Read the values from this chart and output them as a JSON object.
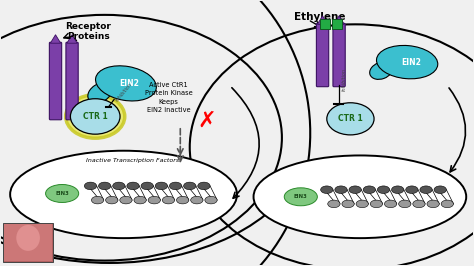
{
  "bg_color": "#f0f0f0",
  "left_label": "Receptor\nProteins",
  "right_label": "Ethylene",
  "ein2_color": "#3bbfcf",
  "ctr1_color": "#a8dde8",
  "ctr1_text_color": "#1a6a1a",
  "receptor_color": "#7b3fa8",
  "ethylene_color": "#2ecc71",
  "annotation_text": "Active CtR1\nProtein Kinase\nKeeps\nEIN2 inactive",
  "inactive_tf_text": "Inactive Transcription Factors",
  "ein3_color": "#7fc87f",
  "dna_dark": "#555555",
  "dna_light": "#999999",
  "ctr1_glow": "#e8e860",
  "ctr1_glow_edge": "#c8c820"
}
